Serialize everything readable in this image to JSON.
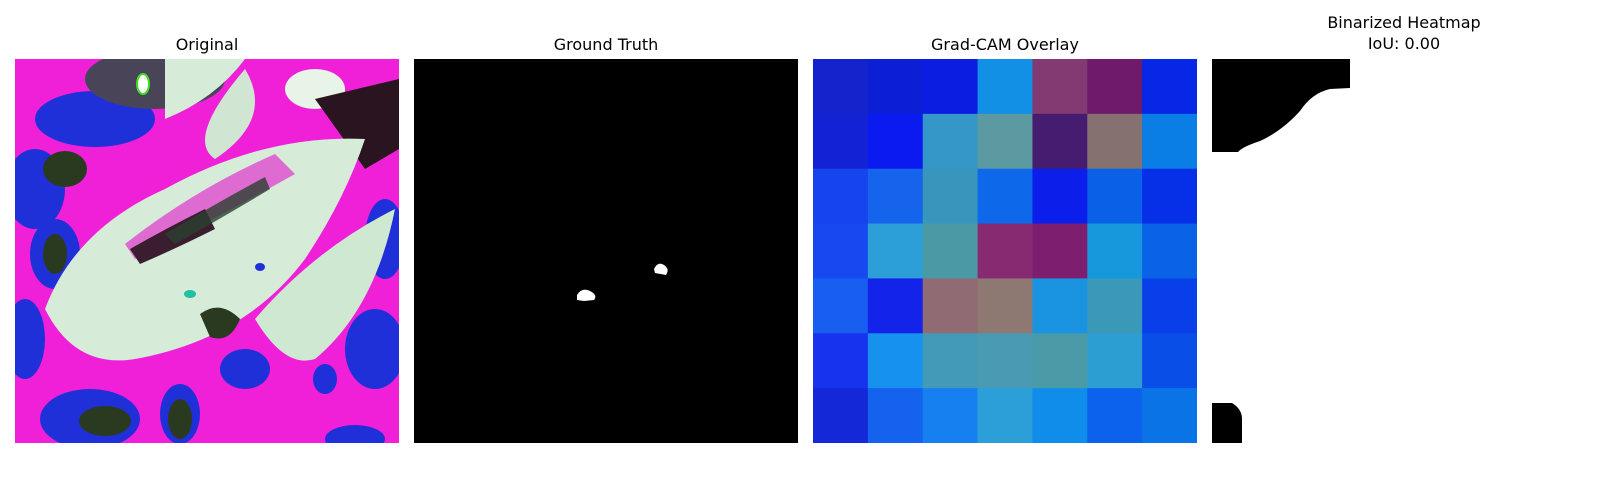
{
  "panels": {
    "original": {
      "title": "Original"
    },
    "ground_truth": {
      "title": "Ground Truth"
    },
    "gradcam": {
      "title": "Grad-CAM Overlay",
      "grid_colors": [
        [
          "#1523cc",
          "#0d1fd4",
          "#0b1de0",
          "#1190e6",
          "#813b72",
          "#701a6c",
          "#0727e6"
        ],
        [
          "#1422d6",
          "#0b1af0",
          "#3596c8",
          "#5a9aa0",
          "#461c70",
          "#857270",
          "#0a7ee4"
        ],
        [
          "#1644ee",
          "#1664ec",
          "#3896bc",
          "#0e68ea",
          "#0c1eea",
          "#0a60e6",
          "#0630e8"
        ],
        [
          "#1848f0",
          "#2d9fd8",
          "#4a9aa6",
          "#872a72",
          "#7d1f6e",
          "#1898dc",
          "#0a63e6"
        ],
        [
          "#185ef0",
          "#1323ea",
          "#916b74",
          "#8d7872",
          "#1a94e0",
          "#3a98b8",
          "#093fe8"
        ],
        [
          "#1833ee",
          "#1791ee",
          "#439ab8",
          "#4a9ab4",
          "#4a9aa8",
          "#2c9ed2",
          "#094ee6"
        ],
        [
          "#1428d8",
          "#1462ee",
          "#1680f0",
          "#2d9fd8",
          "#108ceb",
          "#0c62ec",
          "#0a74e6"
        ]
      ]
    },
    "binarized": {
      "title_line1": "Binarized Heatmap",
      "title_line2": "IoU: 0.00"
    }
  }
}
